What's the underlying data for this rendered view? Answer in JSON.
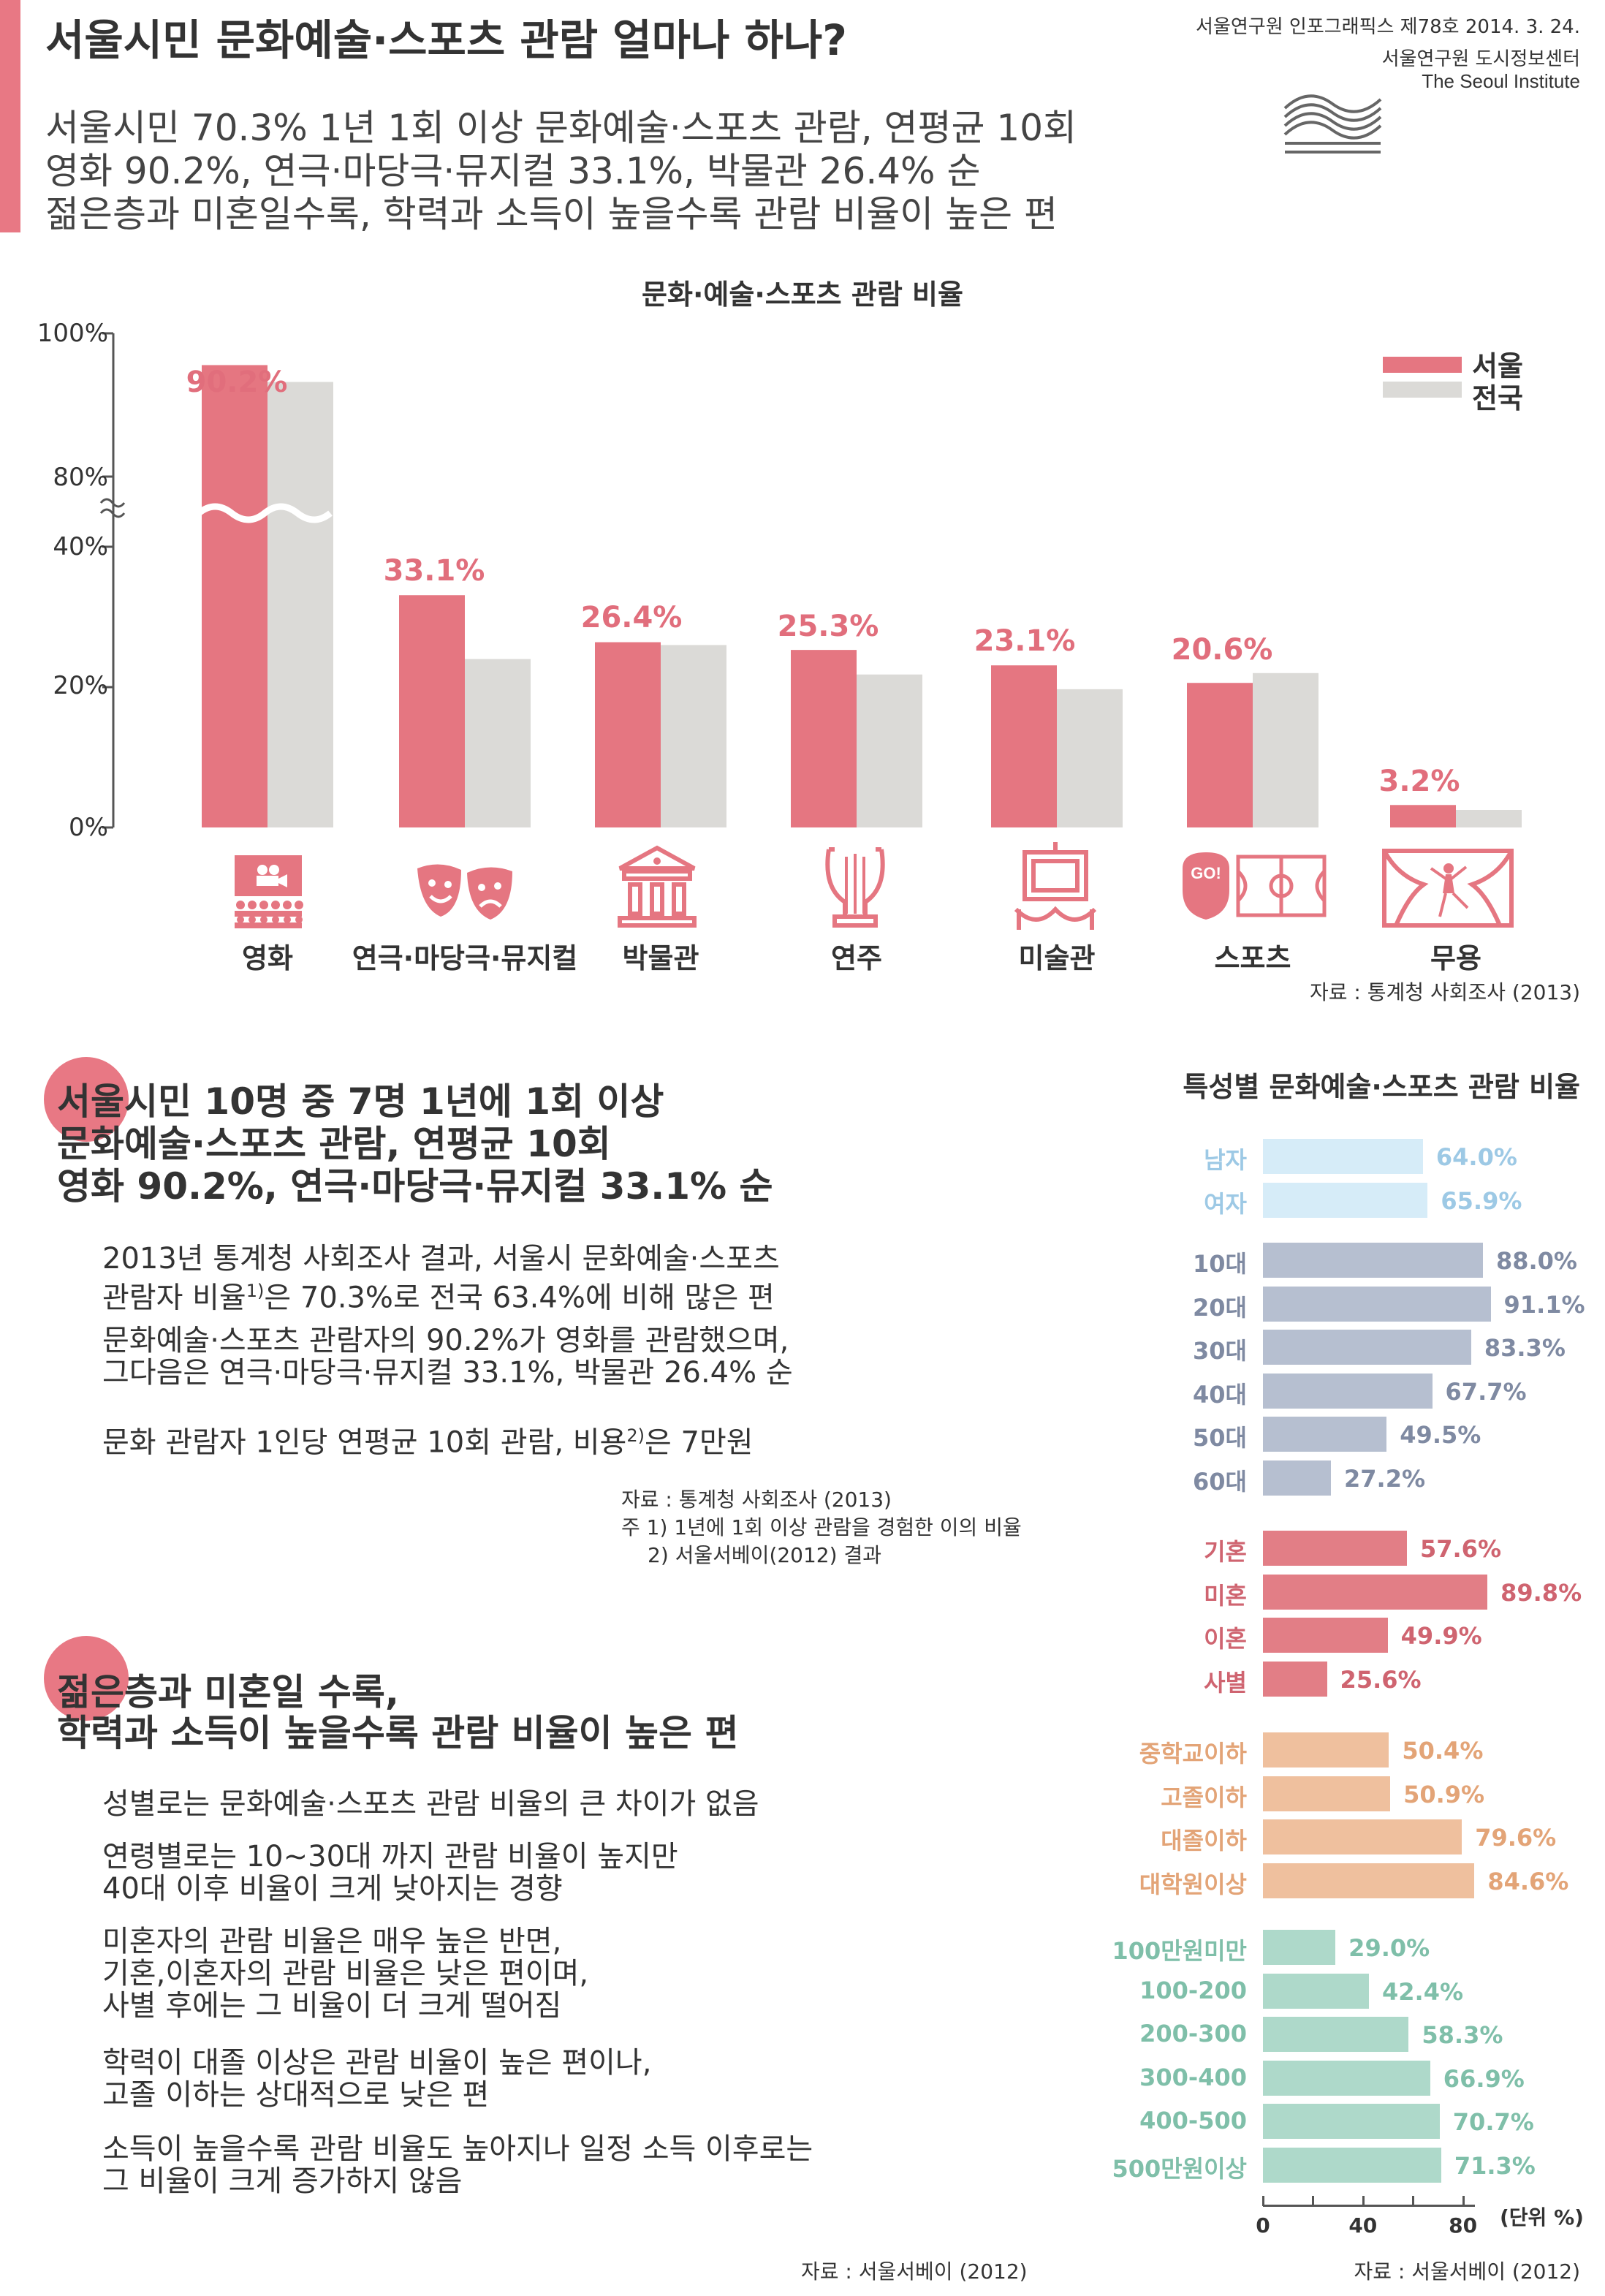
{
  "header": {
    "title": "서울시민 문화예술·스포츠 관람 얼마나 하나?",
    "subtitle_lines": [
      "서울시민 70.3% 1년 1회 이상 문화예술·스포츠 관람, 연평균 10회",
      "영화 90.2%, 연극·마당극·뮤지컬 33.1%, 박물관 26.4% 순",
      "젊은층과 미혼일수록, 학력과 소득이 높을수록 관람 비율이 높은 편"
    ],
    "issue": "서울연구원 인포그래픽스 제78호 2014. 3. 24.",
    "org_kr": "서울연구원 도시정보센터",
    "org_en": "The Seoul Institute"
  },
  "colors": {
    "accent": "#e87884",
    "seoul": "#e57681",
    "national": "#dbdad7",
    "gender": "#d6ecf8",
    "age": "#b6bfd0",
    "marital": "#e27e86",
    "education": "#efc09e",
    "income": "#aed9ca"
  },
  "chart_data": [
    {
      "type": "bar",
      "title": "문화·예술·스포츠 관람 비율",
      "categories": [
        "영화",
        "연극·마당극·뮤지컬",
        "박물관",
        "연주",
        "미술관",
        "스포츠",
        "무용"
      ],
      "icons": [
        "cinema-icon",
        "theater-masks-icon",
        "museum-icon",
        "lyre-icon",
        "gallery-icon",
        "stadium-icon",
        "dance-stage-icon"
      ],
      "series": [
        {
          "name": "서울",
          "values": [
            90.2,
            33.1,
            26.4,
            25.3,
            23.1,
            20.6,
            3.2
          ]
        },
        {
          "name": "전국",
          "values": [
            85.0,
            24.0,
            26.0,
            21.8,
            19.7,
            22.0,
            2.5
          ]
        }
      ],
      "value_labels": [
        "90.2%",
        "33.1%",
        "26.4%",
        "25.3%",
        "23.1%",
        "20.6%",
        "3.2%"
      ],
      "yticks": [
        "100%",
        "80%",
        "40%",
        "20%",
        "0%"
      ],
      "axis_break": "40%–80%",
      "legend": "top-right",
      "source": "자료 : 통계청 사회조사 (2013)"
    },
    {
      "type": "bar",
      "orientation": "horizontal",
      "title": "특성별 문화예술·스포츠 관람 비율",
      "groups": [
        {
          "color_key": "gender",
          "items": [
            {
              "label": "남자",
              "value": 64.0,
              "text": "64.0%"
            },
            {
              "label": "여자",
              "value": 65.9,
              "text": "65.9%"
            }
          ]
        },
        {
          "color_key": "age",
          "items": [
            {
              "label": "10대",
              "value": 88.0,
              "text": "88.0%"
            },
            {
              "label": "20대",
              "value": 91.1,
              "text": "91.1%"
            },
            {
              "label": "30대",
              "value": 83.3,
              "text": "83.3%"
            },
            {
              "label": "40대",
              "value": 67.7,
              "text": "67.7%"
            },
            {
              "label": "50대",
              "value": 49.5,
              "text": "49.5%"
            },
            {
              "label": "60대",
              "value": 27.2,
              "text": "27.2%"
            }
          ]
        },
        {
          "color_key": "marital",
          "items": [
            {
              "label": "기혼",
              "value": 57.6,
              "text": "57.6%"
            },
            {
              "label": "미혼",
              "value": 89.8,
              "text": "89.8%"
            },
            {
              "label": "이혼",
              "value": 49.9,
              "text": "49.9%"
            },
            {
              "label": "사별",
              "value": 25.6,
              "text": "25.6%"
            }
          ]
        },
        {
          "color_key": "education",
          "items": [
            {
              "label": "중학교이하",
              "value": 50.4,
              "text": "50.4%"
            },
            {
              "label": "고졸이하",
              "value": 50.9,
              "text": "50.9%"
            },
            {
              "label": "대졸이하",
              "value": 79.6,
              "text": "79.6%"
            },
            {
              "label": "대학원이상",
              "value": 84.6,
              "text": "84.6%"
            }
          ]
        },
        {
          "color_key": "income",
          "items": [
            {
              "label": "100만원미만",
              "value": 29.0,
              "text": "29.0%"
            },
            {
              "label": "100-200",
              "value": 42.4,
              "text": "42.4%"
            },
            {
              "label": "200-300",
              "value": 58.3,
              "text": "58.3%"
            },
            {
              "label": "300-400",
              "value": 66.9,
              "text": "66.9%"
            },
            {
              "label": "400-500",
              "value": 70.7,
              "text": "70.7%"
            },
            {
              "label": "500만원이상",
              "value": 71.3,
              "text": "71.3%"
            }
          ]
        }
      ],
      "xticks": [
        "0",
        "40",
        "80"
      ],
      "xlim": [
        0,
        90
      ],
      "unit": "(단위 %)",
      "source": "자료 : 서울서베이 (2012)"
    }
  ],
  "section1": {
    "head_lines": [
      "서울시민 10명 중 7명 1년에 1회 이상",
      "문화예술·스포츠 관람, 연평균 10회",
      "영화 90.2%, 연극·마당극·뮤지컬 33.1% 순"
    ],
    "p1_line1": "2013년 통계청 사회조사 결과, 서울시 문화예술·스포츠",
    "p1_line2a": "관람자 비율",
    "p1_sup": "1)",
    "p1_line2b": "은 70.3%로 전국 63.4%에 비해 많은 편",
    "p2_line1": "문화예술·스포츠 관람자의 90.2%가 영화를 관람했으며,",
    "p2_line2": "그다음은 연극·마당극·뮤지컬 33.1%, 박물관 26.4% 순",
    "p3a": "문화 관람자 1인당 연평균 10회 관람, 비용",
    "p3_sup": "2)",
    "p3b": "은 7만원",
    "note1": "자료 : 통계청 사회조사 (2013)",
    "note2": "주 1) 1년에 1회 이상 관람을 경험한 이의 비율",
    "note3": "2) 서울서베이(2012) 결과"
  },
  "section2": {
    "head_lines": [
      "젊은층과 미혼일 수록,",
      "학력과 소득이 높을수록 관람 비율이 높은 편"
    ],
    "paras": [
      [
        "성별로는 문화예술·스포츠 관람 비율의 큰 차이가 없음"
      ],
      [
        "연령별로는 10~30대 까지 관람 비율이 높지만",
        "40대 이후 비율이 크게 낮아지는 경향"
      ],
      [
        "미혼자의 관람 비율은 매우 높은 반면,",
        "기혼,이혼자의 관람 비율은 낮은 편이며,",
        "사별 후에는 그 비율이 더 크게 떨어짐"
      ],
      [
        "학력이 대졸 이상은 관람 비율이 높은 편이나,",
        "고졸 이하는 상대적으로 낮은 편"
      ],
      [
        "소득이 높을수록 관람 비율도 높아지나 일정 소득 이후로는",
        "그 비율이 크게 증가하지 않음"
      ]
    ],
    "source": "자료 : 서울서베이 (2012)"
  }
}
